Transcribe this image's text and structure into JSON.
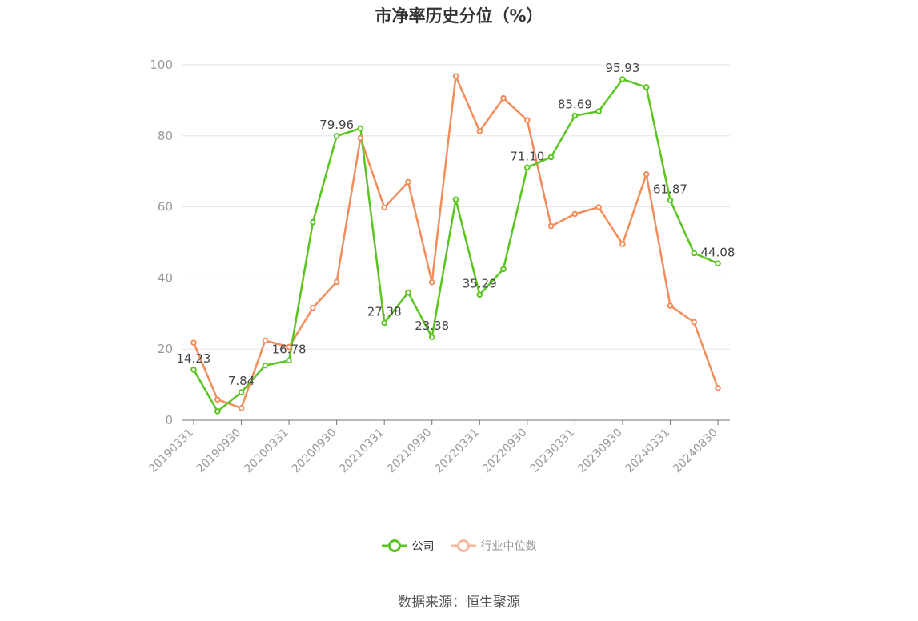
{
  "chart_data": {
    "type": "line",
    "title": "市净率历史分位（%）",
    "ylim": [
      0,
      100
    ],
    "yticks": [
      "0",
      "20",
      "40",
      "60",
      "80",
      "100"
    ],
    "grid": true,
    "legend_position": "bottom",
    "x": [
      "20190331",
      "20190630",
      "20190930",
      "20191231",
      "20200331",
      "20200630",
      "20200930",
      "20201231",
      "20210331",
      "20210630",
      "20210930",
      "20211231",
      "20220331",
      "20220630",
      "20220930",
      "20221231",
      "20230331",
      "20230630",
      "20230930",
      "20231231",
      "20240331",
      "20240630",
      "20240830"
    ],
    "x_tick_labels": [
      "20190331",
      "20190930",
      "20200331",
      "20200930",
      "20210331",
      "20210930",
      "20220331",
      "20220930",
      "20230331",
      "20230930",
      "20240331",
      "20240830"
    ],
    "x_tick_indices": [
      0,
      2,
      4,
      6,
      8,
      10,
      12,
      14,
      16,
      18,
      20,
      22
    ],
    "series": [
      {
        "name": "公司",
        "color": "#5ac420",
        "values": [
          14.23,
          2.5,
          7.84,
          15.4,
          16.78,
          55.7,
          79.96,
          82.1,
          27.38,
          35.9,
          23.38,
          62.1,
          35.29,
          42.5,
          71.1,
          74.0,
          85.69,
          86.9,
          95.93,
          93.7,
          61.87,
          47.0,
          44.08
        ],
        "labeled_points": [
          {
            "index": 0,
            "text": "14.23"
          },
          {
            "index": 2,
            "text": "7.84"
          },
          {
            "index": 4,
            "text": "16.78"
          },
          {
            "index": 6,
            "text": "79.96"
          },
          {
            "index": 8,
            "text": "27.38"
          },
          {
            "index": 10,
            "text": "23.38"
          },
          {
            "index": 12,
            "text": "35.29"
          },
          {
            "index": 14,
            "text": "71.10"
          },
          {
            "index": 16,
            "text": "85.69"
          },
          {
            "index": 18,
            "text": "95.93"
          },
          {
            "index": 20,
            "text": "61.87"
          },
          {
            "index": 22,
            "text": "44.08"
          }
        ]
      },
      {
        "name": "行业中位数",
        "color": "#f28c5a",
        "values": [
          21.8,
          5.8,
          3.4,
          22.4,
          20.6,
          31.6,
          38.9,
          79.4,
          59.8,
          67.0,
          38.8,
          96.8,
          81.3,
          90.6,
          84.4,
          54.6,
          58.0,
          59.9,
          49.5,
          69.2,
          32.2,
          27.6,
          9.0
        ]
      }
    ]
  },
  "legend": {
    "company_label": "公司",
    "industry_label": "行业中位数",
    "company_color": "#5ac420",
    "industry_color": "#f6b9a0"
  },
  "source": "数据来源：恒生聚源"
}
